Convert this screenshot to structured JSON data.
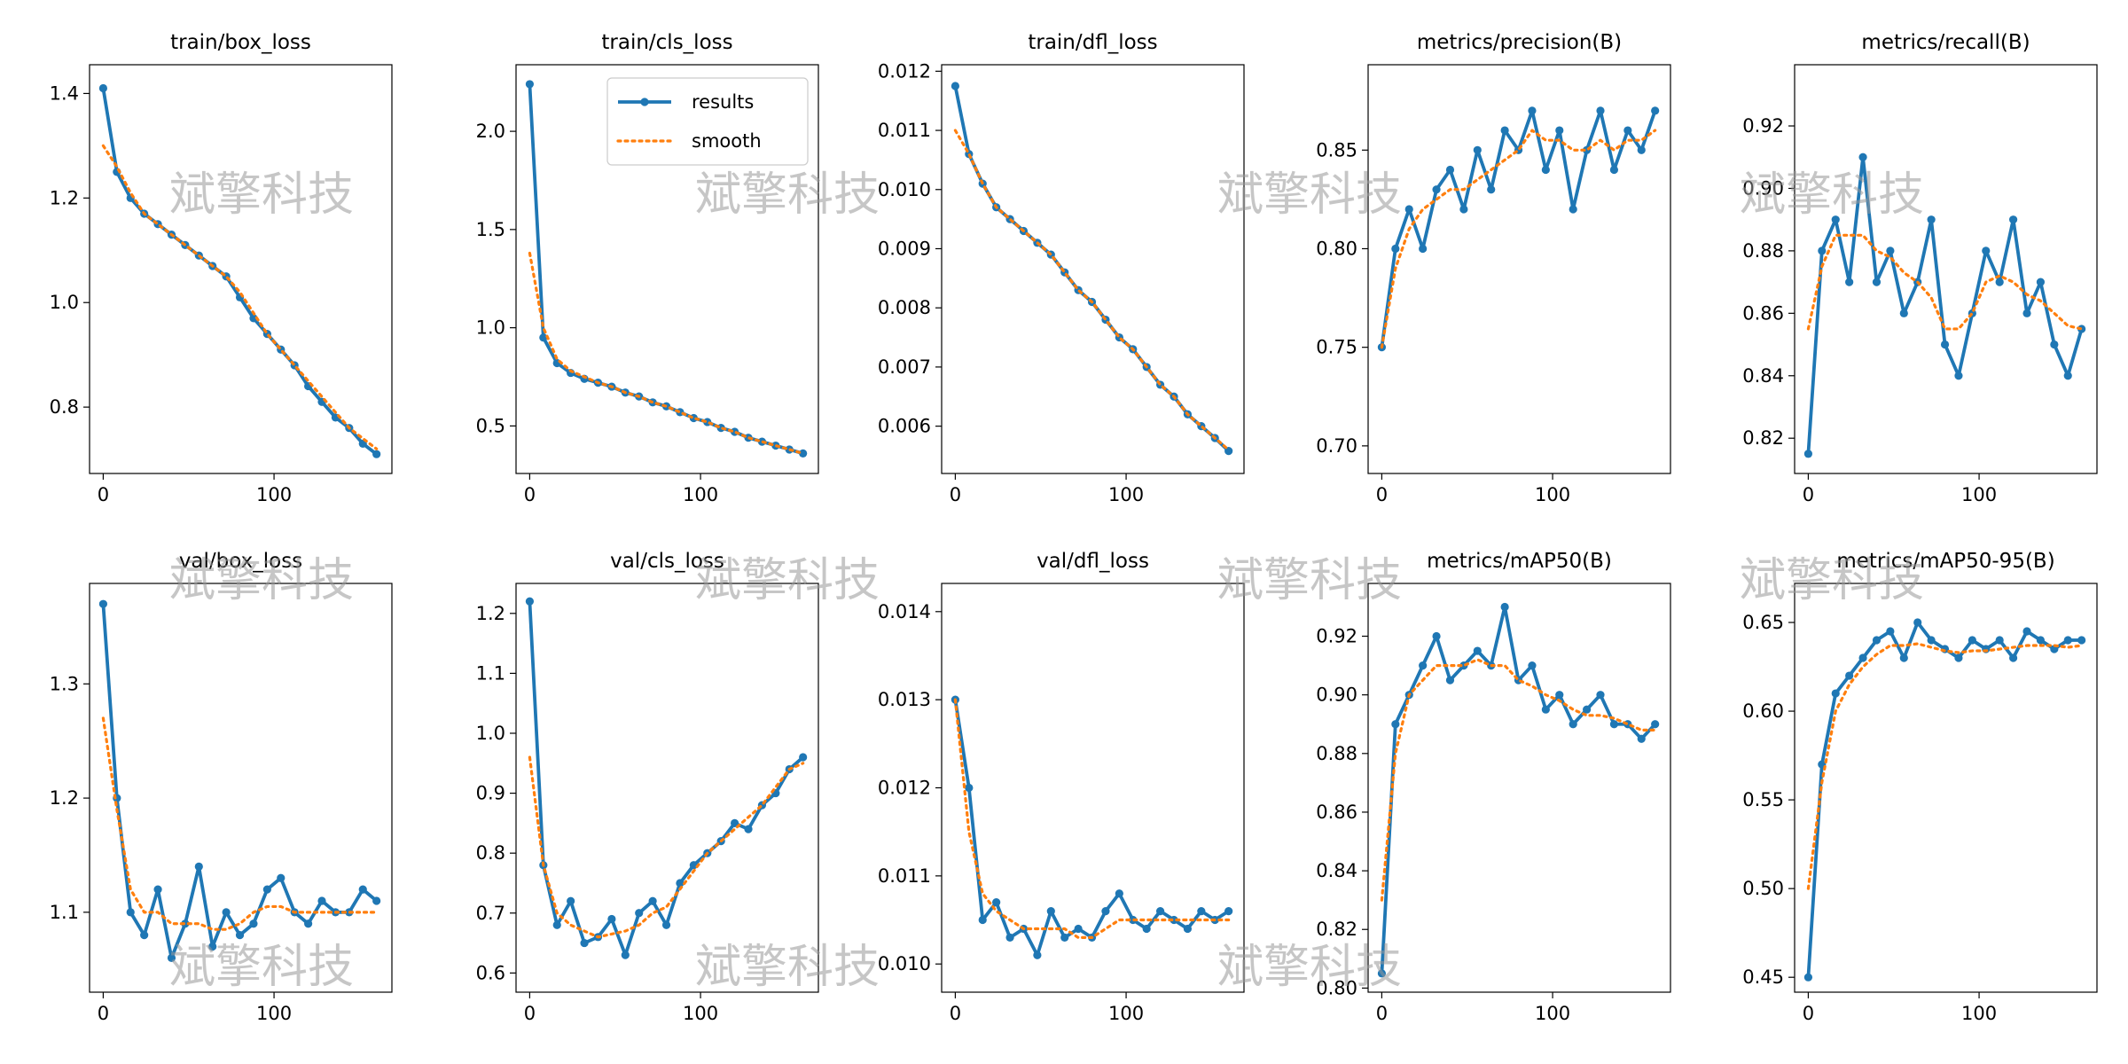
{
  "watermark": "斌擎科技",
  "chart_data": [
    {
      "type": "line",
      "title": "train/box_loss",
      "x": [
        0,
        8,
        16,
        24,
        32,
        40,
        48,
        56,
        64,
        72,
        80,
        88,
        96,
        104,
        112,
        120,
        128,
        136,
        144,
        152,
        160
      ],
      "series": [
        {
          "name": "results",
          "color": "#1f77b4",
          "marker": true,
          "values": [
            1.41,
            1.25,
            1.2,
            1.17,
            1.15,
            1.13,
            1.11,
            1.09,
            1.07,
            1.05,
            1.01,
            0.97,
            0.94,
            0.91,
            0.88,
            0.84,
            0.81,
            0.78,
            0.76,
            0.73,
            0.71
          ]
        },
        {
          "name": "smooth",
          "color": "#ff7f0e",
          "linestyle": "dotted",
          "values": [
            1.3,
            1.26,
            1.21,
            1.17,
            1.15,
            1.13,
            1.11,
            1.09,
            1.07,
            1.05,
            1.02,
            0.98,
            0.94,
            0.91,
            0.88,
            0.85,
            0.82,
            0.79,
            0.76,
            0.74,
            0.72
          ]
        }
      ],
      "xlim": [
        -8,
        169
      ],
      "xticks": [
        0,
        100
      ],
      "ylim": [
        0.673,
        1.455
      ],
      "yticks": [
        0.8,
        {
          "value": 1,
          "label": "1.0"
        },
        1.2,
        1.4
      ]
    },
    {
      "type": "line",
      "title": "train/cls_loss",
      "x": [
        0,
        8,
        16,
        24,
        32,
        40,
        48,
        56,
        64,
        72,
        80,
        88,
        96,
        104,
        112,
        120,
        128,
        136,
        144,
        152,
        160
      ],
      "series": [
        {
          "name": "results",
          "color": "#1f77b4",
          "marker": true,
          "values": [
            2.24,
            0.95,
            0.82,
            0.77,
            0.74,
            0.72,
            0.7,
            0.67,
            0.65,
            0.62,
            0.6,
            0.57,
            0.54,
            0.52,
            0.49,
            0.47,
            0.44,
            0.42,
            0.4,
            0.38,
            0.36
          ]
        },
        {
          "name": "smooth",
          "color": "#ff7f0e",
          "linestyle": "dotted",
          "values": [
            1.38,
            1.0,
            0.84,
            0.78,
            0.75,
            0.72,
            0.7,
            0.67,
            0.65,
            0.62,
            0.6,
            0.57,
            0.54,
            0.52,
            0.49,
            0.47,
            0.44,
            0.42,
            0.4,
            0.38,
            0.36
          ]
        }
      ],
      "xlim": [
        -8,
        169
      ],
      "xticks": [
        0,
        100
      ],
      "ylim": [
        0.258,
        2.339
      ],
      "yticks": [
        0.5,
        {
          "value": 1,
          "label": "1.0"
        },
        1.5,
        {
          "value": 2,
          "label": "2.0"
        }
      ],
      "legend": "upper right"
    },
    {
      "type": "line",
      "title": "train/dfl_loss",
      "x": [
        0,
        8,
        16,
        24,
        32,
        40,
        48,
        56,
        64,
        72,
        80,
        88,
        96,
        104,
        112,
        120,
        128,
        136,
        144,
        152,
        160
      ],
      "series": [
        {
          "name": "results",
          "color": "#1f77b4",
          "marker": true,
          "values": [
            0.01175,
            0.0106,
            0.0101,
            0.0097,
            0.0095,
            0.0093,
            0.0091,
            0.0089,
            0.0086,
            0.0083,
            0.0081,
            0.0078,
            0.0075,
            0.0073,
            0.007,
            0.0067,
            0.0065,
            0.0062,
            0.006,
            0.0058,
            0.00558
          ]
        },
        {
          "name": "smooth",
          "color": "#ff7f0e",
          "linestyle": "dotted",
          "values": [
            0.011,
            0.0106,
            0.0101,
            0.0097,
            0.0095,
            0.0093,
            0.0091,
            0.0089,
            0.0086,
            0.0083,
            0.0081,
            0.0078,
            0.0075,
            0.0073,
            0.007,
            0.0067,
            0.0065,
            0.0062,
            0.006,
            0.0058,
            0.0056
          ]
        }
      ],
      "xlim": [
        -8,
        169
      ],
      "xticks": [
        0,
        100
      ],
      "ylim": [
        0.0052,
        0.01211
      ],
      "yticks": [
        0.006,
        0.007,
        0.008,
        0.009,
        {
          "value": 0.01,
          "label": "0.010"
        },
        0.011,
        0.012
      ]
    },
    {
      "type": "line",
      "title": "metrics/precision(B)",
      "x": [
        0,
        8,
        16,
        24,
        32,
        40,
        48,
        56,
        64,
        72,
        80,
        88,
        96,
        104,
        112,
        120,
        128,
        136,
        144,
        152,
        160
      ],
      "series": [
        {
          "name": "results",
          "color": "#1f77b4",
          "marker": true,
          "values": [
            0.75,
            0.8,
            0.82,
            0.8,
            0.83,
            0.84,
            0.82,
            0.85,
            0.83,
            0.86,
            0.85,
            0.87,
            0.84,
            0.86,
            0.82,
            0.85,
            0.87,
            0.84,
            0.86,
            0.85,
            0.87
          ]
        },
        {
          "name": "smooth",
          "color": "#ff7f0e",
          "linestyle": "dotted",
          "values": [
            0.75,
            0.79,
            0.81,
            0.82,
            0.825,
            0.83,
            0.83,
            0.835,
            0.84,
            0.845,
            0.85,
            0.86,
            0.855,
            0.855,
            0.85,
            0.85,
            0.855,
            0.85,
            0.855,
            0.855,
            0.86
          ]
        }
      ],
      "xlim": [
        -8,
        169
      ],
      "xticks": [
        0,
        100
      ],
      "ylim": [
        0.686,
        0.8933
      ],
      "yticks": [
        {
          "value": 0.7,
          "label": "0.70"
        },
        0.75,
        {
          "value": 0.8,
          "label": "0.80"
        },
        0.85
      ]
    },
    {
      "type": "line",
      "title": "metrics/recall(B)",
      "x": [
        0,
        8,
        16,
        24,
        32,
        40,
        48,
        56,
        64,
        72,
        80,
        88,
        96,
        104,
        112,
        120,
        128,
        136,
        144,
        152,
        160
      ],
      "series": [
        {
          "name": "results",
          "color": "#1f77b4",
          "marker": true,
          "values": [
            0.815,
            0.88,
            0.89,
            0.87,
            0.91,
            0.87,
            0.88,
            0.86,
            0.87,
            0.89,
            0.85,
            0.84,
            0.86,
            0.88,
            0.87,
            0.89,
            0.86,
            0.87,
            0.85,
            0.84,
            0.855
          ]
        },
        {
          "name": "smooth",
          "color": "#ff7f0e",
          "linestyle": "dotted",
          "values": [
            0.855,
            0.875,
            0.885,
            0.885,
            0.885,
            0.88,
            0.878,
            0.873,
            0.87,
            0.865,
            0.855,
            0.855,
            0.86,
            0.87,
            0.872,
            0.87,
            0.866,
            0.864,
            0.86,
            0.856,
            0.855
          ]
        }
      ],
      "xlim": [
        -8,
        169
      ],
      "xticks": [
        0,
        100
      ],
      "ylim": [
        0.8087,
        0.9396
      ],
      "yticks": [
        0.82,
        0.84,
        0.86,
        0.88,
        {
          "value": 0.9,
          "label": "0.90"
        },
        0.92
      ]
    },
    {
      "type": "line",
      "title": "val/box_loss",
      "x": [
        0,
        8,
        16,
        24,
        32,
        40,
        48,
        56,
        64,
        72,
        80,
        88,
        96,
        104,
        112,
        120,
        128,
        136,
        144,
        152,
        160
      ],
      "series": [
        {
          "name": "results",
          "color": "#1f77b4",
          "marker": true,
          "values": [
            1.37,
            1.2,
            1.1,
            1.08,
            1.12,
            1.06,
            1.09,
            1.14,
            1.07,
            1.1,
            1.08,
            1.09,
            1.12,
            1.13,
            1.1,
            1.09,
            1.11,
            1.1,
            1.1,
            1.12,
            1.11
          ]
        },
        {
          "name": "smooth",
          "color": "#ff7f0e",
          "linestyle": "dotted",
          "values": [
            1.27,
            1.19,
            1.12,
            1.1,
            1.1,
            1.09,
            1.09,
            1.09,
            1.085,
            1.085,
            1.09,
            1.1,
            1.105,
            1.105,
            1.1,
            1.1,
            1.1,
            1.1,
            1.1,
            1.1,
            1.1
          ]
        }
      ],
      "xlim": [
        -8,
        169
      ],
      "xticks": [
        0,
        100
      ],
      "ylim": [
        1.03,
        1.388
      ],
      "yticks": [
        1.1,
        1.2,
        1.3
      ]
    },
    {
      "type": "line",
      "title": "val/cls_loss",
      "x": [
        0,
        8,
        16,
        24,
        32,
        40,
        48,
        56,
        64,
        72,
        80,
        88,
        96,
        104,
        112,
        120,
        128,
        136,
        144,
        152,
        160
      ],
      "series": [
        {
          "name": "results",
          "color": "#1f77b4",
          "marker": true,
          "values": [
            1.22,
            0.78,
            0.68,
            0.72,
            0.65,
            0.66,
            0.69,
            0.63,
            0.7,
            0.72,
            0.68,
            0.75,
            0.78,
            0.8,
            0.82,
            0.85,
            0.84,
            0.88,
            0.9,
            0.94,
            0.96
          ]
        },
        {
          "name": "smooth",
          "color": "#ff7f0e",
          "linestyle": "dotted",
          "values": [
            0.96,
            0.78,
            0.7,
            0.68,
            0.67,
            0.66,
            0.665,
            0.67,
            0.68,
            0.7,
            0.71,
            0.74,
            0.77,
            0.8,
            0.82,
            0.84,
            0.86,
            0.88,
            0.91,
            0.94,
            0.95
          ]
        }
      ],
      "xlim": [
        -8,
        169
      ],
      "xticks": [
        0,
        100
      ],
      "ylim": [
        0.568,
        1.25
      ],
      "yticks": [
        0.6,
        0.7,
        0.8,
        0.9,
        {
          "value": 1,
          "label": "1.0"
        },
        1.1,
        1.2
      ]
    },
    {
      "type": "line",
      "title": "val/dfl_loss",
      "x": [
        0,
        8,
        16,
        24,
        32,
        40,
        48,
        56,
        64,
        72,
        80,
        88,
        96,
        104,
        112,
        120,
        128,
        136,
        144,
        152,
        160
      ],
      "series": [
        {
          "name": "results",
          "color": "#1f77b4",
          "marker": true,
          "values": [
            0.013,
            0.012,
            0.0105,
            0.0107,
            0.0103,
            0.0104,
            0.0101,
            0.0106,
            0.0103,
            0.0104,
            0.0103,
            0.0106,
            0.0108,
            0.0105,
            0.0104,
            0.0106,
            0.0105,
            0.0104,
            0.0106,
            0.0105,
            0.0106
          ]
        },
        {
          "name": "smooth",
          "color": "#ff7f0e",
          "linestyle": "dotted",
          "values": [
            0.013,
            0.0115,
            0.0108,
            0.0106,
            0.0105,
            0.0104,
            0.0104,
            0.0104,
            0.0104,
            0.0103,
            0.0103,
            0.0104,
            0.0105,
            0.0105,
            0.0105,
            0.0105,
            0.0105,
            0.0105,
            0.0105,
            0.0105,
            0.0105
          ]
        }
      ],
      "xlim": [
        -8,
        169
      ],
      "xticks": [
        0,
        100
      ],
      "ylim": [
        0.00968,
        0.01432
      ],
      "yticks": [
        {
          "value": 0.01,
          "label": "0.010"
        },
        0.011,
        0.012,
        0.013,
        0.014
      ]
    },
    {
      "type": "line",
      "title": "metrics/mAP50(B)",
      "x": [
        0,
        8,
        16,
        24,
        32,
        40,
        48,
        56,
        64,
        72,
        80,
        88,
        96,
        104,
        112,
        120,
        128,
        136,
        144,
        152,
        160
      ],
      "series": [
        {
          "name": "results",
          "color": "#1f77b4",
          "marker": true,
          "values": [
            0.805,
            0.89,
            0.9,
            0.91,
            0.92,
            0.905,
            0.91,
            0.915,
            0.91,
            0.93,
            0.905,
            0.91,
            0.895,
            0.9,
            0.89,
            0.895,
            0.9,
            0.89,
            0.89,
            0.885,
            0.89
          ]
        },
        {
          "name": "smooth",
          "color": "#ff7f0e",
          "linestyle": "dotted",
          "values": [
            0.83,
            0.88,
            0.9,
            0.905,
            0.91,
            0.91,
            0.91,
            0.912,
            0.91,
            0.91,
            0.905,
            0.903,
            0.9,
            0.898,
            0.895,
            0.893,
            0.893,
            0.892,
            0.89,
            0.888,
            0.888
          ]
        }
      ],
      "xlim": [
        -8,
        169
      ],
      "xticks": [
        0,
        100
      ],
      "ylim": [
        0.7986,
        0.938
      ],
      "yticks": [
        {
          "value": 0.8,
          "label": "0.80"
        },
        0.82,
        0.84,
        0.86,
        0.88,
        {
          "value": 0.9,
          "label": "0.90"
        },
        0.92
      ]
    },
    {
      "type": "line",
      "title": "metrics/mAP50-95(B)",
      "x": [
        0,
        8,
        16,
        24,
        32,
        40,
        48,
        56,
        64,
        72,
        80,
        88,
        96,
        104,
        112,
        120,
        128,
        136,
        144,
        152,
        160
      ],
      "series": [
        {
          "name": "results",
          "color": "#1f77b4",
          "marker": true,
          "values": [
            0.45,
            0.57,
            0.61,
            0.62,
            0.63,
            0.64,
            0.645,
            0.63,
            0.65,
            0.64,
            0.635,
            0.63,
            0.64,
            0.635,
            0.64,
            0.63,
            0.645,
            0.64,
            0.635,
            0.64,
            0.64
          ]
        },
        {
          "name": "smooth",
          "color": "#ff7f0e",
          "linestyle": "dotted",
          "values": [
            0.5,
            0.56,
            0.6,
            0.615,
            0.625,
            0.632,
            0.637,
            0.637,
            0.638,
            0.636,
            0.634,
            0.633,
            0.634,
            0.634,
            0.635,
            0.636,
            0.637,
            0.637,
            0.637,
            0.636,
            0.637
          ]
        }
      ],
      "xlim": [
        -8,
        169
      ],
      "xticks": [
        0,
        100
      ],
      "ylim": [
        0.4416,
        0.672
      ],
      "yticks": [
        0.45,
        {
          "value": 0.5,
          "label": "0.50"
        },
        0.55,
        {
          "value": 0.6,
          "label": "0.60"
        },
        0.65
      ]
    }
  ]
}
